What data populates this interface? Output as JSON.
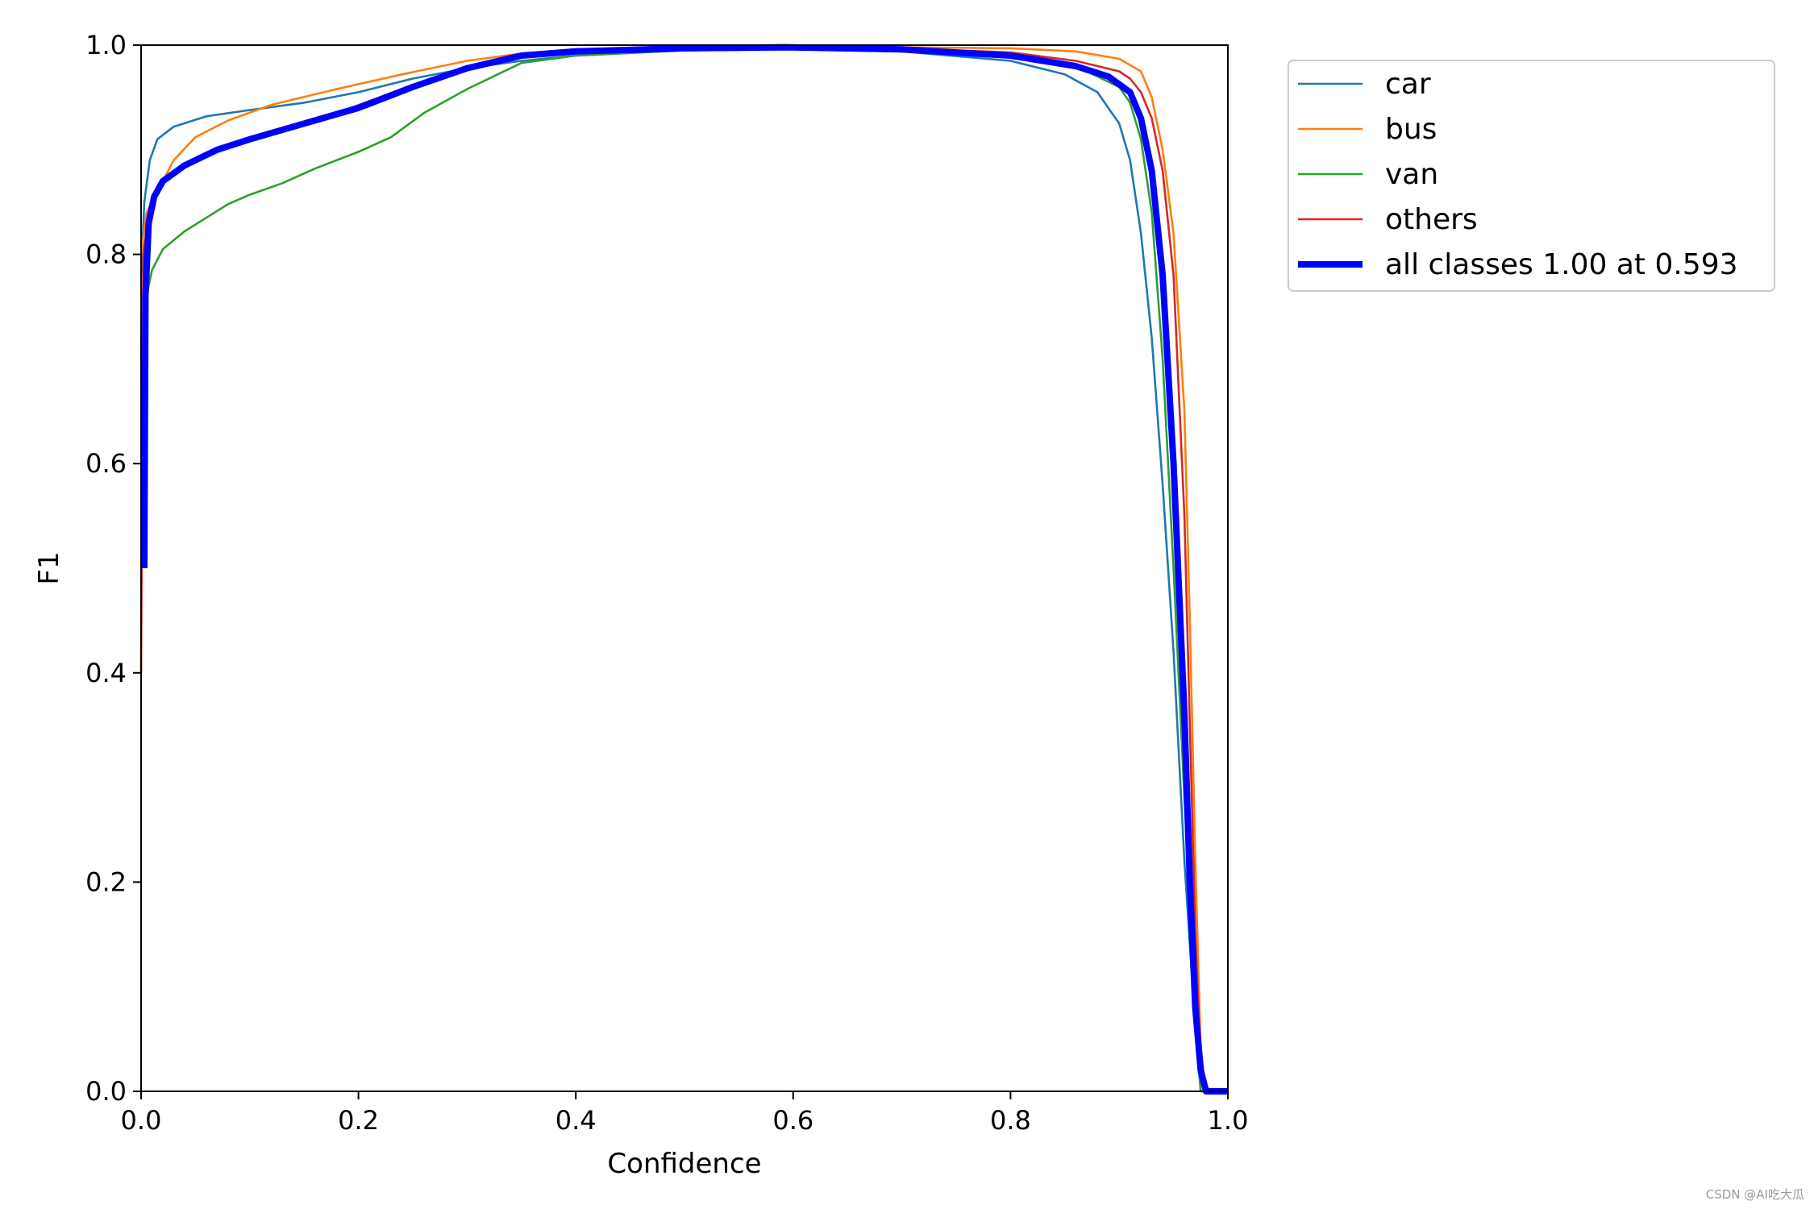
{
  "chart_data": {
    "type": "line",
    "xlabel": "Confidence",
    "ylabel": "F1",
    "xlim": [
      0.0,
      1.0
    ],
    "ylim": [
      0.0,
      1.0
    ],
    "xticks": [
      "0.0",
      "0.2",
      "0.4",
      "0.6",
      "0.8",
      "1.0"
    ],
    "yticks": [
      "0.0",
      "0.2",
      "0.4",
      "0.6",
      "0.8",
      "1.0"
    ],
    "grid": false,
    "legend_position": "outside-top-right",
    "series": [
      {
        "name": "car",
        "color": "#1f77b4",
        "line_width": "thin",
        "points": [
          [
            0.0,
            0.78
          ],
          [
            0.003,
            0.85
          ],
          [
            0.008,
            0.89
          ],
          [
            0.015,
            0.91
          ],
          [
            0.03,
            0.922
          ],
          [
            0.06,
            0.932
          ],
          [
            0.1,
            0.938
          ],
          [
            0.15,
            0.945
          ],
          [
            0.2,
            0.955
          ],
          [
            0.25,
            0.968
          ],
          [
            0.3,
            0.978
          ],
          [
            0.35,
            0.985
          ],
          [
            0.4,
            0.99
          ],
          [
            0.5,
            0.995
          ],
          [
            0.6,
            0.996
          ],
          [
            0.7,
            0.994
          ],
          [
            0.8,
            0.985
          ],
          [
            0.85,
            0.972
          ],
          [
            0.88,
            0.955
          ],
          [
            0.9,
            0.925
          ],
          [
            0.91,
            0.89
          ],
          [
            0.92,
            0.82
          ],
          [
            0.93,
            0.72
          ],
          [
            0.94,
            0.58
          ],
          [
            0.95,
            0.42
          ],
          [
            0.96,
            0.22
          ],
          [
            0.97,
            0.06
          ],
          [
            0.975,
            0.0
          ],
          [
            1.0,
            0.0
          ]
        ]
      },
      {
        "name": "bus",
        "color": "#ff7f0e",
        "line_width": "thin",
        "points": [
          [
            0.0,
            0.8
          ],
          [
            0.005,
            0.84
          ],
          [
            0.015,
            0.86
          ],
          [
            0.03,
            0.89
          ],
          [
            0.05,
            0.912
          ],
          [
            0.08,
            0.928
          ],
          [
            0.12,
            0.943
          ],
          [
            0.18,
            0.958
          ],
          [
            0.24,
            0.972
          ],
          [
            0.3,
            0.985
          ],
          [
            0.35,
            0.992
          ],
          [
            0.4,
            0.996
          ],
          [
            0.5,
            0.998
          ],
          [
            0.6,
            0.998
          ],
          [
            0.7,
            0.998
          ],
          [
            0.8,
            0.997
          ],
          [
            0.86,
            0.994
          ],
          [
            0.9,
            0.987
          ],
          [
            0.92,
            0.975
          ],
          [
            0.93,
            0.95
          ],
          [
            0.94,
            0.9
          ],
          [
            0.95,
            0.82
          ],
          [
            0.96,
            0.65
          ],
          [
            0.965,
            0.45
          ],
          [
            0.97,
            0.22
          ],
          [
            0.975,
            0.04
          ],
          [
            0.98,
            0.0
          ],
          [
            1.0,
            0.0
          ]
        ]
      },
      {
        "name": "van",
        "color": "#2ca02c",
        "line_width": "thin",
        "points": [
          [
            0.0,
            0.7
          ],
          [
            0.003,
            0.75
          ],
          [
            0.01,
            0.785
          ],
          [
            0.02,
            0.805
          ],
          [
            0.04,
            0.822
          ],
          [
            0.06,
            0.835
          ],
          [
            0.08,
            0.848
          ],
          [
            0.1,
            0.857
          ],
          [
            0.13,
            0.868
          ],
          [
            0.16,
            0.882
          ],
          [
            0.2,
            0.898
          ],
          [
            0.23,
            0.912
          ],
          [
            0.26,
            0.935
          ],
          [
            0.3,
            0.958
          ],
          [
            0.35,
            0.983
          ],
          [
            0.4,
            0.99
          ],
          [
            0.5,
            0.995
          ],
          [
            0.6,
            0.996
          ],
          [
            0.7,
            0.995
          ],
          [
            0.8,
            0.99
          ],
          [
            0.86,
            0.98
          ],
          [
            0.9,
            0.96
          ],
          [
            0.91,
            0.945
          ],
          [
            0.92,
            0.91
          ],
          [
            0.93,
            0.84
          ],
          [
            0.94,
            0.7
          ],
          [
            0.95,
            0.5
          ],
          [
            0.96,
            0.28
          ],
          [
            0.97,
            0.08
          ],
          [
            0.975,
            0.0
          ],
          [
            1.0,
            0.0
          ]
        ]
      },
      {
        "name": "others",
        "color": "#d62728",
        "line_width": "thin",
        "points": [
          [
            0.0,
            0.4
          ],
          [
            0.002,
            0.8
          ],
          [
            0.008,
            0.845
          ],
          [
            0.02,
            0.87
          ],
          [
            0.04,
            0.885
          ],
          [
            0.08,
            0.902
          ],
          [
            0.12,
            0.915
          ],
          [
            0.18,
            0.935
          ],
          [
            0.24,
            0.958
          ],
          [
            0.3,
            0.978
          ],
          [
            0.35,
            0.988
          ],
          [
            0.4,
            0.993
          ],
          [
            0.5,
            0.997
          ],
          [
            0.6,
            0.998
          ],
          [
            0.7,
            0.997
          ],
          [
            0.8,
            0.993
          ],
          [
            0.86,
            0.985
          ],
          [
            0.9,
            0.975
          ],
          [
            0.91,
            0.968
          ],
          [
            0.92,
            0.955
          ],
          [
            0.93,
            0.93
          ],
          [
            0.94,
            0.88
          ],
          [
            0.95,
            0.78
          ],
          [
            0.96,
            0.55
          ],
          [
            0.965,
            0.35
          ],
          [
            0.97,
            0.15
          ],
          [
            0.975,
            0.03
          ],
          [
            0.978,
            0.0
          ],
          [
            1.0,
            0.0
          ]
        ]
      },
      {
        "name": "all classes 1.00 at 0.593",
        "color": "#0000ff",
        "line_width": "thick",
        "points": [
          [
            0.003,
            0.5
          ],
          [
            0.004,
            0.76
          ],
          [
            0.007,
            0.83
          ],
          [
            0.012,
            0.855
          ],
          [
            0.02,
            0.87
          ],
          [
            0.04,
            0.885
          ],
          [
            0.07,
            0.9
          ],
          [
            0.1,
            0.91
          ],
          [
            0.15,
            0.925
          ],
          [
            0.2,
            0.94
          ],
          [
            0.25,
            0.96
          ],
          [
            0.3,
            0.978
          ],
          [
            0.35,
            0.99
          ],
          [
            0.4,
            0.994
          ],
          [
            0.5,
            0.997
          ],
          [
            0.593,
            0.998
          ],
          [
            0.7,
            0.996
          ],
          [
            0.8,
            0.99
          ],
          [
            0.86,
            0.98
          ],
          [
            0.89,
            0.97
          ],
          [
            0.91,
            0.955
          ],
          [
            0.92,
            0.93
          ],
          [
            0.93,
            0.88
          ],
          [
            0.94,
            0.78
          ],
          [
            0.95,
            0.6
          ],
          [
            0.96,
            0.36
          ],
          [
            0.965,
            0.2
          ],
          [
            0.97,
            0.08
          ],
          [
            0.975,
            0.02
          ],
          [
            0.98,
            0.0
          ],
          [
            1.0,
            0.0
          ]
        ]
      }
    ]
  },
  "watermark": "CSDN @AI吃大瓜"
}
